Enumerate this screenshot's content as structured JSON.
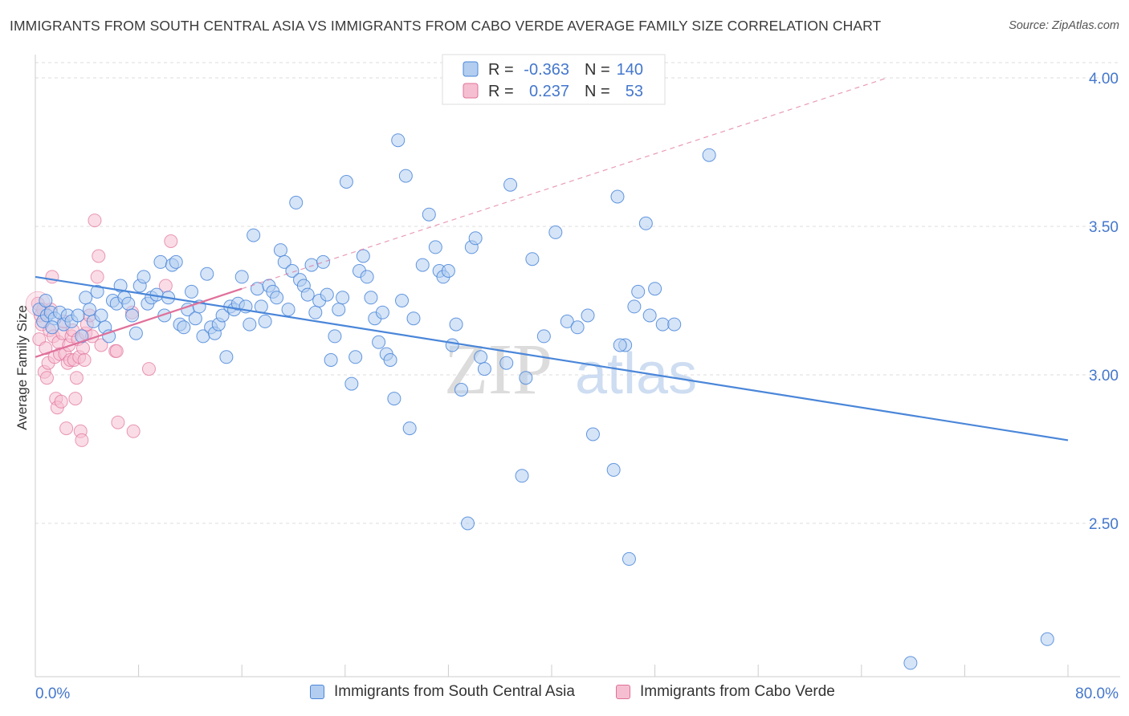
{
  "title": "IMMIGRANTS FROM SOUTH CENTRAL ASIA VS IMMIGRANTS FROM CABO VERDE AVERAGE FAMILY SIZE CORRELATION CHART",
  "source": "Source: ZipAtlas.com",
  "watermark": {
    "zip": "ZIP",
    "atlas": "atlas"
  },
  "colors": {
    "blue": "#4a86d9",
    "blue_fill": "#b3cdf0",
    "pink": "#e0709a",
    "pink_fill": "#f6bfd1",
    "axis_text": "#4477cc",
    "grid": "#dcdcdc"
  },
  "chart_data": {
    "type": "scatter",
    "title": "IMMIGRANTS FROM SOUTH CENTRAL ASIA VS IMMIGRANTS FROM CABO VERDE AVERAGE FAMILY SIZE CORRELATION CHART",
    "xlabel": "",
    "ylabel": "Average Family Size",
    "xlim": [
      0,
      80
    ],
    "ylim": [
      2.0,
      4.05
    ],
    "x_tick_labels": {
      "min": "0.0%",
      "max": "80.0%"
    },
    "y_ticks": [
      {
        "value": 2.5,
        "label": "2.50"
      },
      {
        "value": 3.0,
        "label": "3.00"
      },
      {
        "value": 3.5,
        "label": "3.50"
      },
      {
        "value": 4.0,
        "label": "4.00"
      }
    ],
    "grid": true,
    "legend": {
      "placement": "top-center",
      "rows": [
        {
          "r_label": "R =",
          "r_value": "-0.363",
          "n_label": "N =",
          "n_value": "140"
        },
        {
          "r_label": "R =",
          "r_value": "0.237",
          "n_label": "N =",
          "n_value": "53"
        }
      ]
    },
    "series": [
      {
        "name": "Immigrants from South Central Asia",
        "color": "#4a86d9",
        "trend": {
          "x": [
            0,
            80
          ],
          "y": [
            3.33,
            2.78
          ],
          "style": "solid"
        },
        "points": [
          [
            0.3,
            3.22
          ],
          [
            0.6,
            3.18
          ],
          [
            0.9,
            3.2
          ],
          [
            1.2,
            3.21
          ],
          [
            1.5,
            3.19
          ],
          [
            1.9,
            3.21
          ],
          [
            2.2,
            3.17
          ],
          [
            2.5,
            3.2
          ],
          [
            0.8,
            3.25
          ],
          [
            1.3,
            3.16
          ],
          [
            2.8,
            3.18
          ],
          [
            3.3,
            3.2
          ],
          [
            3.6,
            3.13
          ],
          [
            3.9,
            3.26
          ],
          [
            4.2,
            3.22
          ],
          [
            4.5,
            3.18
          ],
          [
            4.8,
            3.28
          ],
          [
            5.1,
            3.2
          ],
          [
            5.4,
            3.16
          ],
          [
            5.7,
            3.13
          ],
          [
            6.0,
            3.25
          ],
          [
            6.3,
            3.24
          ],
          [
            6.6,
            3.3
          ],
          [
            6.9,
            3.26
          ],
          [
            7.2,
            3.24
          ],
          [
            7.5,
            3.2
          ],
          [
            7.8,
            3.14
          ],
          [
            8.1,
            3.3
          ],
          [
            8.4,
            3.33
          ],
          [
            8.7,
            3.24
          ],
          [
            9.0,
            3.26
          ],
          [
            9.4,
            3.27
          ],
          [
            9.7,
            3.38
          ],
          [
            10.0,
            3.2
          ],
          [
            10.3,
            3.26
          ],
          [
            10.6,
            3.37
          ],
          [
            10.9,
            3.38
          ],
          [
            11.2,
            3.17
          ],
          [
            11.5,
            3.16
          ],
          [
            11.8,
            3.22
          ],
          [
            12.1,
            3.28
          ],
          [
            12.4,
            3.19
          ],
          [
            12.7,
            3.23
          ],
          [
            13.0,
            3.13
          ],
          [
            13.3,
            3.34
          ],
          [
            13.6,
            3.16
          ],
          [
            13.9,
            3.14
          ],
          [
            14.2,
            3.17
          ],
          [
            14.5,
            3.2
          ],
          [
            14.8,
            3.06
          ],
          [
            15.1,
            3.23
          ],
          [
            15.4,
            3.22
          ],
          [
            15.7,
            3.24
          ],
          [
            16.0,
            3.33
          ],
          [
            16.3,
            3.23
          ],
          [
            16.6,
            3.17
          ],
          [
            16.9,
            3.47
          ],
          [
            17.2,
            3.29
          ],
          [
            17.5,
            3.23
          ],
          [
            17.8,
            3.18
          ],
          [
            18.1,
            3.3
          ],
          [
            18.4,
            3.28
          ],
          [
            18.7,
            3.26
          ],
          [
            19.0,
            3.42
          ],
          [
            19.3,
            3.38
          ],
          [
            19.6,
            3.22
          ],
          [
            19.9,
            3.35
          ],
          [
            20.2,
            3.58
          ],
          [
            20.5,
            3.32
          ],
          [
            20.8,
            3.3
          ],
          [
            21.1,
            3.27
          ],
          [
            21.4,
            3.37
          ],
          [
            21.7,
            3.21
          ],
          [
            22.0,
            3.25
          ],
          [
            22.3,
            3.38
          ],
          [
            22.6,
            3.27
          ],
          [
            22.9,
            3.05
          ],
          [
            23.2,
            3.13
          ],
          [
            23.5,
            3.22
          ],
          [
            23.8,
            3.26
          ],
          [
            24.1,
            3.65
          ],
          [
            24.5,
            2.97
          ],
          [
            24.8,
            3.06
          ],
          [
            25.1,
            3.35
          ],
          [
            25.4,
            3.4
          ],
          [
            25.7,
            3.33
          ],
          [
            26.0,
            3.26
          ],
          [
            26.3,
            3.19
          ],
          [
            26.6,
            3.11
          ],
          [
            26.9,
            3.21
          ],
          [
            27.2,
            3.07
          ],
          [
            27.5,
            3.05
          ],
          [
            27.8,
            2.92
          ],
          [
            28.1,
            3.79
          ],
          [
            28.4,
            3.25
          ],
          [
            28.7,
            3.67
          ],
          [
            29.0,
            2.82
          ],
          [
            29.3,
            3.19
          ],
          [
            30.0,
            3.37
          ],
          [
            30.5,
            3.54
          ],
          [
            31.0,
            3.43
          ],
          [
            31.3,
            3.35
          ],
          [
            31.6,
            3.33
          ],
          [
            32.0,
            3.35
          ],
          [
            32.3,
            3.1
          ],
          [
            32.6,
            3.17
          ],
          [
            33.0,
            2.95
          ],
          [
            33.5,
            2.5
          ],
          [
            33.8,
            3.43
          ],
          [
            34.1,
            3.46
          ],
          [
            34.5,
            3.06
          ],
          [
            34.8,
            3.02
          ],
          [
            36.5,
            3.04
          ],
          [
            36.8,
            3.64
          ],
          [
            37.7,
            2.66
          ],
          [
            38.0,
            2.99
          ],
          [
            38.5,
            3.39
          ],
          [
            39.4,
            3.13
          ],
          [
            40.3,
            3.48
          ],
          [
            41.2,
            3.18
          ],
          [
            42.0,
            3.16
          ],
          [
            42.8,
            3.2
          ],
          [
            43.2,
            2.8
          ],
          [
            44.8,
            2.68
          ],
          [
            45.1,
            3.6
          ],
          [
            45.7,
            3.1
          ],
          [
            45.3,
            3.1
          ],
          [
            46.0,
            2.38
          ],
          [
            46.4,
            3.23
          ],
          [
            46.7,
            3.28
          ],
          [
            47.3,
            3.51
          ],
          [
            47.6,
            3.2
          ],
          [
            48.0,
            3.29
          ],
          [
            48.6,
            3.17
          ],
          [
            49.5,
            3.17
          ],
          [
            52.2,
            3.74
          ],
          [
            78.4,
            2.11
          ],
          [
            67.8,
            2.03
          ]
        ]
      },
      {
        "name": "Immigrants from Cabo Verde",
        "color": "#e0709a",
        "trend": {
          "x": [
            0,
            16
          ],
          "y": [
            3.06,
            3.29
          ],
          "style": "solid",
          "extended": {
            "x": [
              16,
              66
            ],
            "y": [
              3.29,
              4.0
            ],
            "style": "dashed"
          }
        },
        "points": [
          [
            0.2,
            3.24
          ],
          [
            0.3,
            3.12
          ],
          [
            0.4,
            3.2
          ],
          [
            0.5,
            3.17
          ],
          [
            0.6,
            3.22
          ],
          [
            0.7,
            3.01
          ],
          [
            0.8,
            3.09
          ],
          [
            0.9,
            2.99
          ],
          [
            1.0,
            3.04
          ],
          [
            1.1,
            3.15
          ],
          [
            1.2,
            3.22
          ],
          [
            1.3,
            3.33
          ],
          [
            1.4,
            3.13
          ],
          [
            1.5,
            3.06
          ],
          [
            1.6,
            2.92
          ],
          [
            1.7,
            2.89
          ],
          [
            1.8,
            3.11
          ],
          [
            1.9,
            3.07
          ],
          [
            2.0,
            2.91
          ],
          [
            2.1,
            3.14
          ],
          [
            2.2,
            3.18
          ],
          [
            2.3,
            3.07
          ],
          [
            2.4,
            2.82
          ],
          [
            2.5,
            3.04
          ],
          [
            2.6,
            3.1
          ],
          [
            2.7,
            3.05
          ],
          [
            2.8,
            3.13
          ],
          [
            2.9,
            3.15
          ],
          [
            3.0,
            3.05
          ],
          [
            3.1,
            2.92
          ],
          [
            3.2,
            2.99
          ],
          [
            3.3,
            3.12
          ],
          [
            3.4,
            3.06
          ],
          [
            3.5,
            2.81
          ],
          [
            3.6,
            2.78
          ],
          [
            3.7,
            3.09
          ],
          [
            3.8,
            3.05
          ],
          [
            3.9,
            3.14
          ],
          [
            4.0,
            3.17
          ],
          [
            4.2,
            3.2
          ],
          [
            4.4,
            3.13
          ],
          [
            4.6,
            3.52
          ],
          [
            4.8,
            3.33
          ],
          [
            4.9,
            3.4
          ],
          [
            5.1,
            3.1
          ],
          [
            6.2,
            3.08
          ],
          [
            6.3,
            3.08
          ],
          [
            6.4,
            2.84
          ],
          [
            7.5,
            3.21
          ],
          [
            7.6,
            2.81
          ],
          [
            8.8,
            3.02
          ],
          [
            10.1,
            3.3
          ],
          [
            10.5,
            3.45
          ]
        ]
      }
    ]
  }
}
